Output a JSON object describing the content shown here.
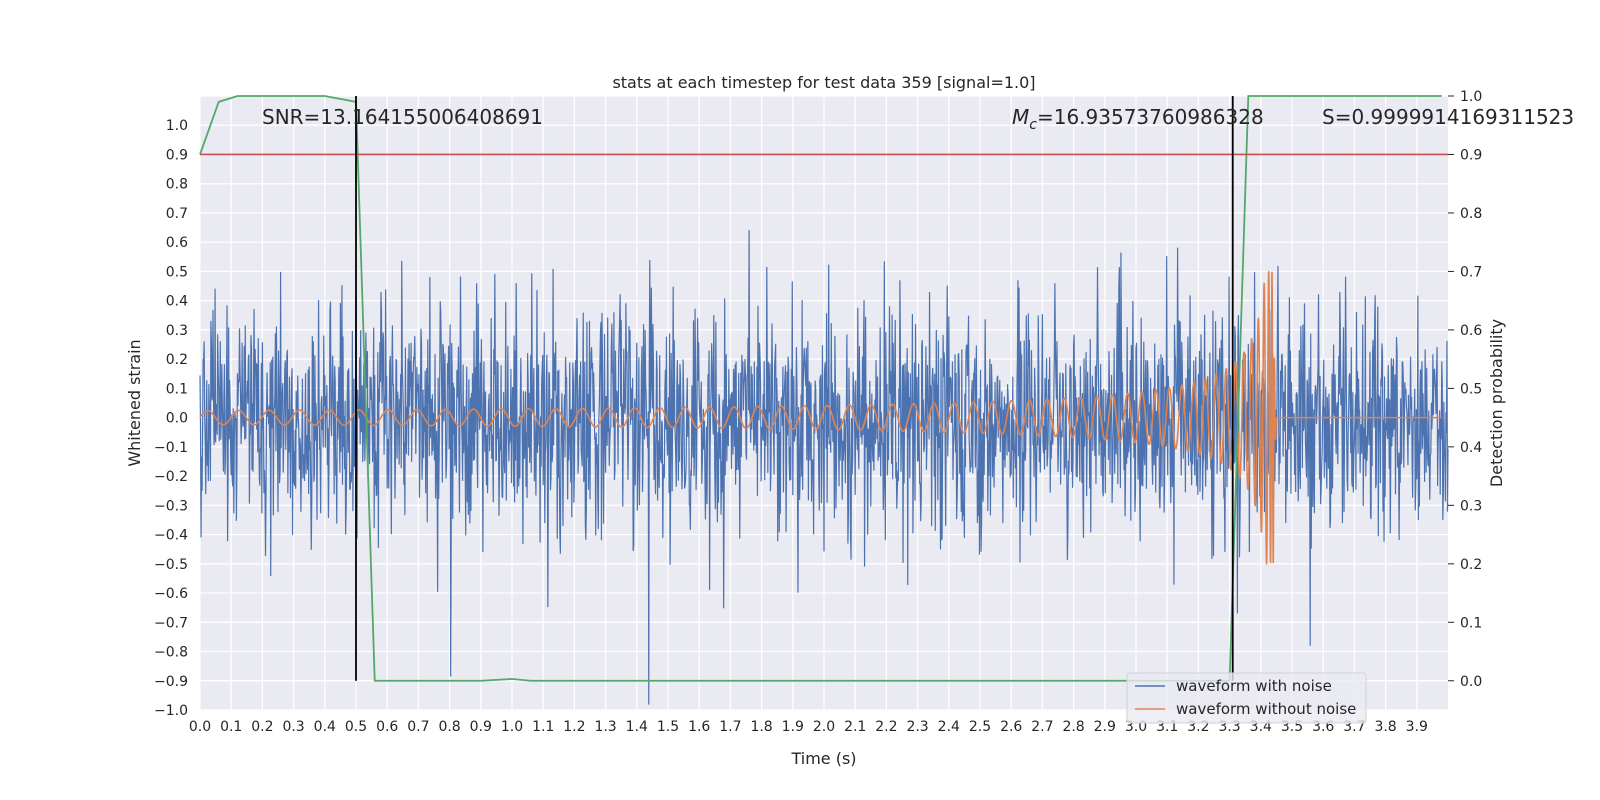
{
  "chart_data": {
    "type": "line",
    "title": "stats at each timestep for test data 359 [signal=1.0]",
    "xlabel": "Time (s)",
    "ylabel": "Whitened strain",
    "y2label": "Detection probability",
    "xlim": [
      0.0,
      4.0
    ],
    "ylim": [
      -1.0,
      1.1
    ],
    "y2lim": [
      -0.05,
      1.0
    ],
    "x_ticks": [
      "0.0",
      "0.1",
      "0.2",
      "0.3",
      "0.4",
      "0.5",
      "0.6",
      "0.7",
      "0.8",
      "0.9",
      "1.0",
      "1.1",
      "1.2",
      "1.3",
      "1.4",
      "1.5",
      "1.6",
      "1.7",
      "1.8",
      "1.9",
      "2.0",
      "2.1",
      "2.2",
      "2.3",
      "2.4",
      "2.5",
      "2.6",
      "2.7",
      "2.8",
      "2.9",
      "3.0",
      "3.1",
      "3.2",
      "3.3",
      "3.4",
      "3.5",
      "3.6",
      "3.7",
      "3.8",
      "3.9"
    ],
    "y_ticks": [
      "1.0",
      "0.9",
      "0.8",
      "0.7",
      "0.6",
      "0.5",
      "0.4",
      "0.3",
      "0.2",
      "0.1",
      "0.0",
      "−0.1",
      "−0.2",
      "−0.3",
      "−0.4",
      "−0.5",
      "−0.6",
      "−0.7",
      "−0.8",
      "−0.9",
      "−1.0"
    ],
    "y2_ticks": [
      "1.0",
      "0.9",
      "0.8",
      "0.7",
      "0.6",
      "0.5",
      "0.4",
      "0.3",
      "0.2",
      "0.1",
      "0.0"
    ],
    "grid": true,
    "legend_position": "lower-right",
    "annotations": {
      "snr": "SNR=13.164155006408691",
      "mc_symbol": "M",
      "mc_sub": "c",
      "mc_value": "=16.93573760986328",
      "s": "S=0.9999914169311523"
    },
    "vertical_lines_x": [
      0.5,
      3.31
    ],
    "threshold_y2": 0.9,
    "series": [
      {
        "name": "waveform with noise",
        "color": "#4c72b0",
        "kind": "noise"
      },
      {
        "name": "waveform without noise",
        "color": "#dd8452",
        "kind": "chirp"
      },
      {
        "color": "#55a868",
        "axis": "right",
        "x": [
          0.0,
          0.06,
          0.12,
          0.2,
          0.3,
          0.4,
          0.5,
          0.56,
          0.62,
          0.9,
          1.0,
          1.06,
          3.3,
          3.36,
          3.4,
          3.98
        ],
        "y": [
          0.9,
          0.99,
          1.0,
          1.0,
          1.0,
          1.0,
          0.99,
          0.0,
          0.0,
          0.0,
          0.003,
          0.0,
          0.0,
          1.0,
          1.0,
          1.0
        ]
      }
    ],
    "colors": {
      "background": "#eaeaf2",
      "grid": "#ffffff",
      "threshold": "#c44e52",
      "vline": "#000000"
    }
  }
}
